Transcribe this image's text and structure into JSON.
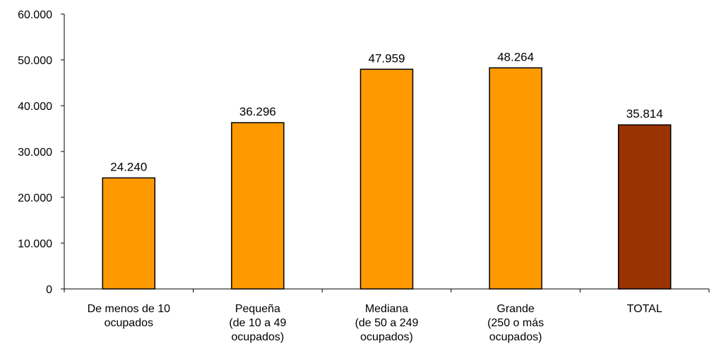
{
  "chart_data": {
    "type": "bar",
    "title": "",
    "xlabel": "",
    "ylabel": "",
    "ylim": [
      0,
      60000
    ],
    "yticks": [
      0,
      10000,
      20000,
      30000,
      40000,
      50000,
      60000
    ],
    "ytick_labels": [
      "0",
      "10.000",
      "20.000",
      "30.000",
      "40.000",
      "50.000",
      "60.000"
    ],
    "grid": false,
    "legend": "none",
    "categories": [
      [
        "De menos de 10",
        "ocupados"
      ],
      [
        "Pequeña",
        "(de 10 a 49",
        "ocupados)"
      ],
      [
        "Mediana",
        "(de 50 a 249",
        "ocupados)"
      ],
      [
        "Grande",
        "(250 o más",
        "ocupados)"
      ],
      [
        "TOTAL"
      ]
    ],
    "values": [
      24240,
      36296,
      47959,
      48264,
      35814
    ],
    "value_labels": [
      "24.240",
      "36.296",
      "47.959",
      "48.264",
      "35.814"
    ],
    "colors": [
      "#FF9900",
      "#FF9900",
      "#FF9900",
      "#FF9900",
      "#993300"
    ]
  }
}
